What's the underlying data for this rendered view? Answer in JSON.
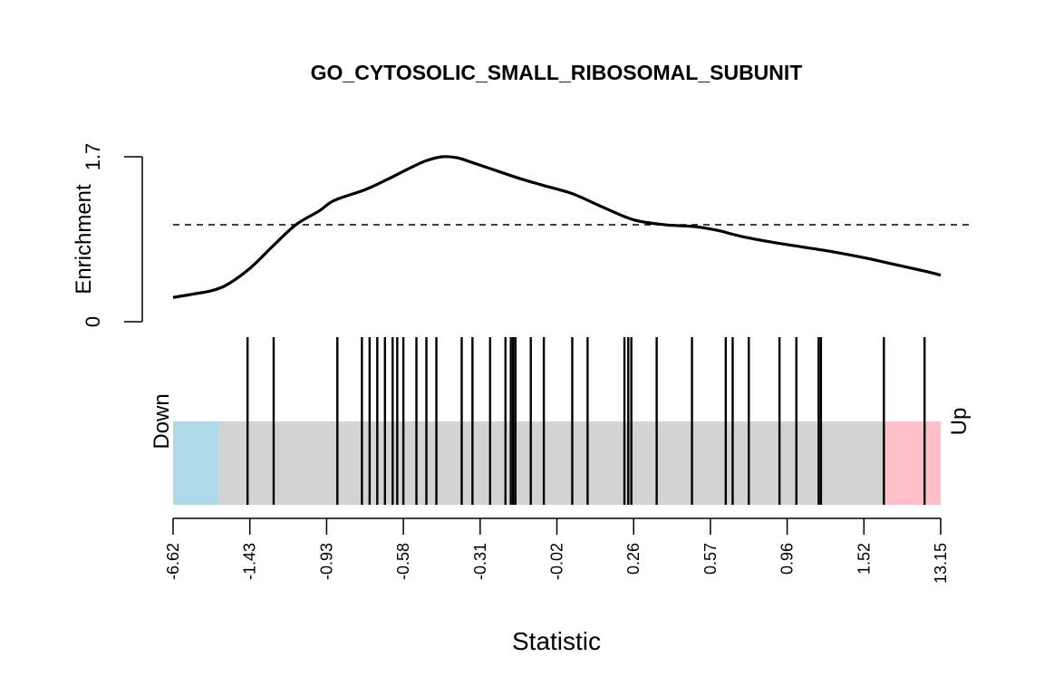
{
  "chart_data": {
    "type": "barcode",
    "title": "GO_CYTOSOLIC_SMALL_RIBOSOMAL_SUBUNIT",
    "xlabel": "Statistic",
    "ylabel": "Enrichment",
    "enrichment_ylim": [
      0,
      1.7
    ],
    "enrichment_ticks": [
      "0",
      "1.7"
    ],
    "reference_level": 1.0,
    "x_rank_range": [
      0,
      10
    ],
    "x_ticks": [
      {
        "rank": 0,
        "label": "-6.62"
      },
      {
        "rank": 1,
        "label": "-1.43"
      },
      {
        "rank": 2,
        "label": "-0.93"
      },
      {
        "rank": 3,
        "label": "-0.58"
      },
      {
        "rank": 4,
        "label": "-0.31"
      },
      {
        "rank": 5,
        "label": "-0.02"
      },
      {
        "rank": 6,
        "label": "0.26"
      },
      {
        "rank": 7,
        "label": "0.57"
      },
      {
        "rank": 8,
        "label": "0.96"
      },
      {
        "rank": 9,
        "label": "1.52"
      },
      {
        "rank": 10,
        "label": "13.15"
      }
    ],
    "enrichment_curve": {
      "x": [
        0,
        0.3,
        0.5,
        0.7,
        1.0,
        1.3,
        1.6,
        1.9,
        2.1,
        2.5,
        2.8,
        3.1,
        3.3,
        3.5,
        3.7,
        3.9,
        4.2,
        4.5,
        4.8,
        5.2,
        5.6,
        6.0,
        6.4,
        6.8,
        7.1,
        7.4,
        7.8,
        8.2,
        8.6,
        9.0,
        9.4,
        9.8,
        10.0
      ],
      "y": [
        0.25,
        0.29,
        0.32,
        0.38,
        0.55,
        0.78,
        1.0,
        1.14,
        1.25,
        1.36,
        1.47,
        1.59,
        1.66,
        1.7,
        1.69,
        1.64,
        1.56,
        1.48,
        1.41,
        1.32,
        1.18,
        1.05,
        1.0,
        0.98,
        0.94,
        0.88,
        0.82,
        0.77,
        0.72,
        0.66,
        0.59,
        0.52,
        0.48
      ]
    },
    "hits": [
      0.97,
      1.31,
      2.14,
      2.46,
      2.56,
      2.66,
      2.76,
      2.86,
      2.92,
      3.0,
      3.17,
      3.3,
      3.43,
      3.76,
      3.9,
      4.13,
      4.33,
      4.4,
      4.43,
      4.46,
      4.66,
      4.83,
      5.2,
      5.4,
      5.88,
      5.93,
      5.97,
      6.3,
      6.76,
      7.2,
      7.29,
      7.5,
      7.9,
      8.12,
      8.41,
      8.44,
      9.26,
      9.79
    ],
    "regions": [
      {
        "name": "Down",
        "from": 0,
        "to": 0.6,
        "color": "#add8e6"
      },
      {
        "name": "neutral",
        "from": 0.6,
        "to": 9.26,
        "color": "#d3d3d3"
      },
      {
        "name": "Up",
        "from": 9.26,
        "to": 10,
        "color": "#ffc0cb"
      }
    ],
    "down_label": "Down",
    "up_label": "Up"
  }
}
